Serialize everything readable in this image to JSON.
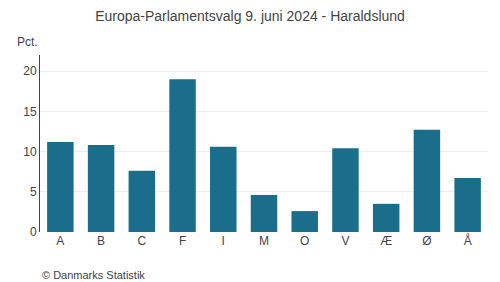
{
  "chart_data": {
    "type": "bar",
    "title": "Europa-Parlamentsvalg 9. juni 2024 - Haraldslund",
    "ylabel": "Pct.",
    "annotations": [
      "© Danmarks Statistik"
    ],
    "categories": [
      "A",
      "B",
      "C",
      "F",
      "I",
      "M",
      "O",
      "V",
      "Æ",
      "Ø",
      "Å"
    ],
    "values": [
      11.2,
      10.8,
      7.6,
      19.0,
      10.6,
      4.6,
      2.6,
      10.4,
      3.5,
      12.7,
      6.7
    ],
    "color": "#1a6e8c",
    "ylim": [
      0,
      22
    ],
    "yticks": [
      0,
      5,
      10,
      15,
      20
    ],
    "grid": true
  }
}
